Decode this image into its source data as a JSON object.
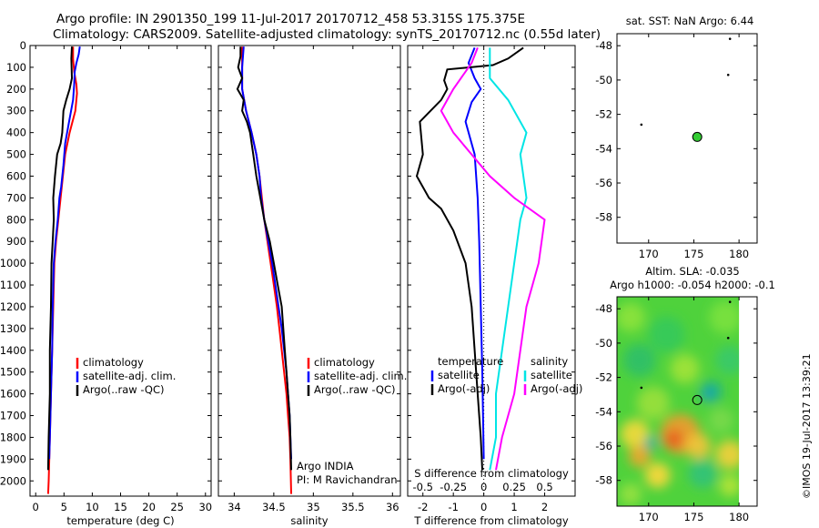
{
  "header": {
    "line1": "Argo profile: IN 2901350_199 11-Jul-2017 20170712_458 53.315S 175.375E",
    "line2": "Climatology: CARS2009. Satellite-adjusted climatology: synTS_20170712.nc (0.55d later)"
  },
  "credit": "©IMOS 19-Jul-2017 13:39:21",
  "colors": {
    "climatology": "#ff0000",
    "satellite": "#0000ff",
    "argo": "#000000",
    "sat_salinity": "#00e5e5",
    "argo_salinity": "#ff00ff",
    "float_marker": "#33cc33"
  },
  "chart_data": [
    {
      "id": "temperature",
      "type": "line",
      "xlabel": "temperature (deg C)",
      "xlim": [
        -1,
        31
      ],
      "xticks": [
        "0",
        "5",
        "10",
        "15",
        "20",
        "25",
        "30"
      ],
      "ylim": [
        0,
        2070
      ],
      "y_reversed": true,
      "yticks": [
        "0",
        "100",
        "200",
        "300",
        "400",
        "500",
        "600",
        "700",
        "800",
        "900",
        "1000",
        "1100",
        "1200",
        "1300",
        "1400",
        "1500",
        "1600",
        "1700",
        "1800",
        "1900",
        "2000"
      ],
      "legend": [
        "climatology",
        "satellite-adj. clim.",
        "Argo(..raw -QC)"
      ],
      "series": [
        {
          "name": "climatology",
          "color": "#ff0000",
          "points": [
            [
              6.6,
              5
            ],
            [
              6.6,
              60
            ],
            [
              6.8,
              120
            ],
            [
              7.2,
              180
            ],
            [
              7.3,
              220
            ],
            [
              7.0,
              300
            ],
            [
              6.0,
              400
            ],
            [
              5.2,
              500
            ],
            [
              4.8,
              600
            ],
            [
              4.4,
              700
            ],
            [
              4.0,
              800
            ],
            [
              3.6,
              900
            ],
            [
              3.3,
              1000
            ],
            [
              3.1,
              1200
            ],
            [
              2.9,
              1400
            ],
            [
              2.7,
              1600
            ],
            [
              2.5,
              1800
            ],
            [
              2.3,
              2000
            ],
            [
              2.2,
              2060
            ]
          ]
        },
        {
          "name": "satellite-adj. clim.",
          "color": "#0000ff",
          "points": [
            [
              7.8,
              5
            ],
            [
              7.6,
              40
            ],
            [
              7.2,
              80
            ],
            [
              6.9,
              120
            ],
            [
              6.8,
              180
            ],
            [
              6.6,
              250
            ],
            [
              5.9,
              350
            ],
            [
              5.2,
              450
            ],
            [
              4.9,
              550
            ],
            [
              4.5,
              650
            ],
            [
              4.2,
              700
            ],
            [
              3.9,
              800
            ],
            [
              3.5,
              900
            ],
            [
              3.2,
              1000
            ],
            [
              3.0,
              1200
            ],
            [
              2.9,
              1400
            ],
            [
              2.7,
              1600
            ],
            [
              2.5,
              1800
            ],
            [
              2.4,
              1900
            ]
          ]
        },
        {
          "name": "Argo(..raw -QC)",
          "color": "#000000",
          "points": [
            [
              6.4,
              5
            ],
            [
              6.3,
              60
            ],
            [
              6.4,
              150
            ],
            [
              6.0,
              200
            ],
            [
              5.4,
              250
            ],
            [
              4.9,
              300
            ],
            [
              4.7,
              400
            ],
            [
              4.4,
              450
            ],
            [
              3.8,
              500
            ],
            [
              3.4,
              600
            ],
            [
              3.1,
              700
            ],
            [
              3.2,
              800
            ],
            [
              3.0,
              900
            ],
            [
              2.8,
              1000
            ],
            [
              2.7,
              1200
            ],
            [
              2.5,
              1400
            ],
            [
              2.5,
              1600
            ],
            [
              2.3,
              1800
            ],
            [
              2.2,
              1950
            ]
          ]
        }
      ]
    },
    {
      "id": "salinity",
      "type": "line",
      "xlabel": "salinity",
      "xlim": [
        33.8,
        36.1
      ],
      "xticks": [
        "34",
        "34.5",
        "35",
        "35.5",
        "36"
      ],
      "ylim": [
        0,
        2070
      ],
      "y_reversed": true,
      "legend": [
        "climatology",
        "satellite-adj. clim.",
        "Argo(..raw -QC)"
      ],
      "annotation": [
        "Argo INDIA",
        "PI: M Ravichandran"
      ],
      "series": [
        {
          "name": "climatology",
          "color": "#ff0000",
          "points": [
            [
              34.1,
              5
            ],
            [
              34.1,
              100
            ],
            [
              34.1,
              200
            ],
            [
              34.15,
              300
            ],
            [
              34.22,
              400
            ],
            [
              34.28,
              500
            ],
            [
              34.32,
              600
            ],
            [
              34.35,
              700
            ],
            [
              34.38,
              800
            ],
            [
              34.42,
              900
            ],
            [
              34.46,
              1000
            ],
            [
              34.5,
              1100
            ],
            [
              34.54,
              1200
            ],
            [
              34.57,
              1300
            ],
            [
              34.6,
              1400
            ],
            [
              34.63,
              1500
            ],
            [
              34.66,
              1600
            ],
            [
              34.68,
              1700
            ],
            [
              34.7,
              1800
            ],
            [
              34.71,
              1900
            ],
            [
              34.72,
              2060
            ]
          ]
        },
        {
          "name": "satellite-adj. clim.",
          "color": "#0000ff",
          "points": [
            [
              34.12,
              5
            ],
            [
              34.1,
              100
            ],
            [
              34.1,
              200
            ],
            [
              34.15,
              300
            ],
            [
              34.22,
              400
            ],
            [
              34.28,
              500
            ],
            [
              34.32,
              600
            ],
            [
              34.34,
              700
            ],
            [
              34.38,
              800
            ],
            [
              34.43,
              900
            ],
            [
              34.48,
              1000
            ],
            [
              34.52,
              1100
            ],
            [
              34.56,
              1200
            ],
            [
              34.6,
              1300
            ],
            [
              34.63,
              1400
            ],
            [
              34.66,
              1500
            ],
            [
              34.68,
              1600
            ],
            [
              34.7,
              1700
            ],
            [
              34.71,
              1800
            ],
            [
              34.72,
              1900
            ]
          ]
        },
        {
          "name": "Argo(..raw -QC)",
          "color": "#000000",
          "points": [
            [
              34.08,
              5
            ],
            [
              34.08,
              50
            ],
            [
              34.05,
              100
            ],
            [
              34.1,
              150
            ],
            [
              34.04,
              200
            ],
            [
              34.12,
              250
            ],
            [
              34.1,
              300
            ],
            [
              34.16,
              350
            ],
            [
              34.2,
              400
            ],
            [
              34.24,
              500
            ],
            [
              34.28,
              600
            ],
            [
              34.33,
              700
            ],
            [
              34.38,
              800
            ],
            [
              34.45,
              900
            ],
            [
              34.5,
              1000
            ],
            [
              34.55,
              1100
            ],
            [
              34.6,
              1200
            ],
            [
              34.62,
              1300
            ],
            [
              34.64,
              1400
            ],
            [
              34.66,
              1500
            ],
            [
              34.68,
              1600
            ],
            [
              34.7,
              1700
            ],
            [
              34.71,
              1800
            ],
            [
              34.72,
              1950
            ]
          ]
        }
      ]
    },
    {
      "id": "difference",
      "type": "line",
      "xlabel": "T difference from climatology",
      "xlim": [
        -2.5,
        3.0
      ],
      "xticks": [
        "-2",
        "-1",
        "0",
        "1",
        "2"
      ],
      "top_axis_label": "S difference from climatology",
      "top_axis_ticks": [
        "-0.5",
        "-0.25",
        "0",
        "0.25",
        "0.5"
      ],
      "ylim": [
        0,
        2070
      ],
      "y_reversed": true,
      "legend_titles": [
        "temperature",
        "salinity"
      ],
      "legend": [
        "satellite",
        "Argo(-adj)",
        "satellite",
        "Argo(-adj)"
      ],
      "series": [
        {
          "name": "temperature satellite",
          "color": "#0000ff",
          "points": [
            [
              -0.3,
              10
            ],
            [
              -0.5,
              80
            ],
            [
              -0.3,
              150
            ],
            [
              -0.1,
              200
            ],
            [
              -0.4,
              260
            ],
            [
              -0.6,
              350
            ],
            [
              -0.3,
              500
            ],
            [
              -0.2,
              700
            ],
            [
              -0.15,
              900
            ],
            [
              -0.1,
              1200
            ],
            [
              -0.05,
              1500
            ],
            [
              0,
              1900
            ]
          ]
        },
        {
          "name": "temperature Argo(-adj)",
          "color": "#000000",
          "points": [
            [
              1.3,
              10
            ],
            [
              0.8,
              60
            ],
            [
              0.3,
              90
            ],
            [
              -1.2,
              110
            ],
            [
              -1.3,
              160
            ],
            [
              -1.2,
              200
            ],
            [
              -1.4,
              250
            ],
            [
              -2.1,
              350
            ],
            [
              -2.0,
              500
            ],
            [
              -2.2,
              600
            ],
            [
              -1.8,
              700
            ],
            [
              -1.4,
              750
            ],
            [
              -1.0,
              850
            ],
            [
              -0.6,
              1000
            ],
            [
              -0.4,
              1200
            ],
            [
              -0.3,
              1400
            ],
            [
              -0.2,
              1600
            ],
            [
              -0.1,
              1800
            ],
            [
              -0.05,
              1950
            ]
          ]
        },
        {
          "name": "salinity satellite",
          "color": "#00e5e5",
          "points": [
            [
              0.05,
              10
            ],
            [
              0.05,
              150
            ],
            [
              0.2,
              250
            ],
            [
              0.35,
              400
            ],
            [
              0.3,
              500
            ],
            [
              0.35,
              700
            ],
            [
              0.3,
              800
            ],
            [
              0.25,
              1000
            ],
            [
              0.2,
              1200
            ],
            [
              0.15,
              1400
            ],
            [
              0.1,
              1600
            ],
            [
              0.1,
              1800
            ],
            [
              0.05,
              1950
            ]
          ]
        },
        {
          "name": "salinity Argo(-adj)",
          "color": "#ff00ff",
          "points": [
            [
              -0.05,
              10
            ],
            [
              -0.1,
              80
            ],
            [
              -0.25,
              200
            ],
            [
              -0.35,
              300
            ],
            [
              -0.25,
              400
            ],
            [
              0.05,
              600
            ],
            [
              0.25,
              700
            ],
            [
              0.5,
              800
            ],
            [
              0.45,
              1000
            ],
            [
              0.35,
              1200
            ],
            [
              0.3,
              1400
            ],
            [
              0.25,
              1600
            ],
            [
              0.15,
              1800
            ],
            [
              0.1,
              1950
            ]
          ]
        }
      ]
    },
    {
      "id": "sst_map",
      "type": "scatter",
      "title": "sat. SST: NaN Argo: 6.44",
      "xlim": [
        166.5,
        182
      ],
      "ylim": [
        -59.5,
        -47.3
      ],
      "xticks": [
        "170",
        "175",
        "180"
      ],
      "yticks": [
        "-48",
        "-50",
        "-52",
        "-54",
        "-56",
        "-58"
      ],
      "argo_position": [
        175.375,
        -53.315
      ],
      "nearby_floats": [
        [
          169.2,
          -52.6
        ],
        [
          178.8,
          -49.7
        ],
        [
          179.0,
          -47.6
        ]
      ]
    },
    {
      "id": "sla_map",
      "type": "heatmap",
      "title_line1": "Altim. SLA: -0.035",
      "title_line2": "Argo h1000: -0.054 h2000: -0.1",
      "xlim": [
        166.5,
        182
      ],
      "ylim": [
        -59.5,
        -47.3
      ],
      "xticks": [
        "170",
        "175",
        "180"
      ],
      "yticks": [
        "-48",
        "-50",
        "-52",
        "-54",
        "-56",
        "-58"
      ],
      "argo_position": [
        175.375,
        -53.315
      ],
      "nearby_floats": [
        [
          169.2,
          -52.6
        ],
        [
          178.8,
          -49.7
        ],
        [
          179.0,
          -47.6
        ]
      ],
      "data_extent_lon": [
        166.5,
        180
      ]
    }
  ]
}
